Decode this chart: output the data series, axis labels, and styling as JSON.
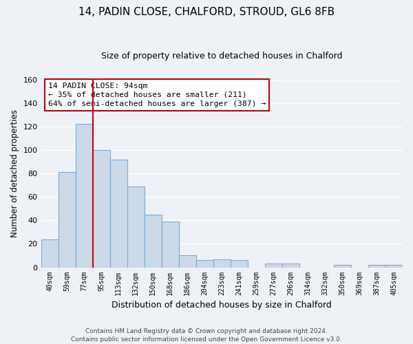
{
  "title": "14, PADIN CLOSE, CHALFORD, STROUD, GL6 8FB",
  "subtitle": "Size of property relative to detached houses in Chalford",
  "xlabel": "Distribution of detached houses by size in Chalford",
  "ylabel": "Number of detached properties",
  "bin_labels": [
    "40sqm",
    "59sqm",
    "77sqm",
    "95sqm",
    "113sqm",
    "132sqm",
    "150sqm",
    "168sqm",
    "186sqm",
    "204sqm",
    "223sqm",
    "241sqm",
    "259sqm",
    "277sqm",
    "296sqm",
    "314sqm",
    "332sqm",
    "350sqm",
    "369sqm",
    "387sqm",
    "405sqm"
  ],
  "bar_heights": [
    24,
    81,
    122,
    100,
    92,
    69,
    45,
    39,
    10,
    6,
    7,
    6,
    0,
    3,
    3,
    0,
    0,
    2,
    0,
    2,
    2
  ],
  "bar_color": "#ccd9e8",
  "bar_edge_color": "#7aaad0",
  "vline_x": 2.5,
  "vline_color": "#cc0000",
  "annotation_text_line1": "14 PADIN CLOSE: 94sqm",
  "annotation_text_line2": "← 35% of detached houses are smaller (211)",
  "annotation_text_line3": "64% of semi-detached houses are larger (387) →",
  "annotation_box_color": "#ffffff",
  "annotation_edge_color": "#cc0000",
  "ylim": [
    0,
    160
  ],
  "yticks": [
    0,
    20,
    40,
    60,
    80,
    100,
    120,
    140,
    160
  ],
  "footer_line1": "Contains HM Land Registry data © Crown copyright and database right 2024.",
  "footer_line2": "Contains public sector information licensed under the Open Government Licence v3.0.",
  "background_color": "#eef2f7",
  "grid_color": "#ffffff",
  "title_fontsize": 11,
  "subtitle_fontsize": 9
}
